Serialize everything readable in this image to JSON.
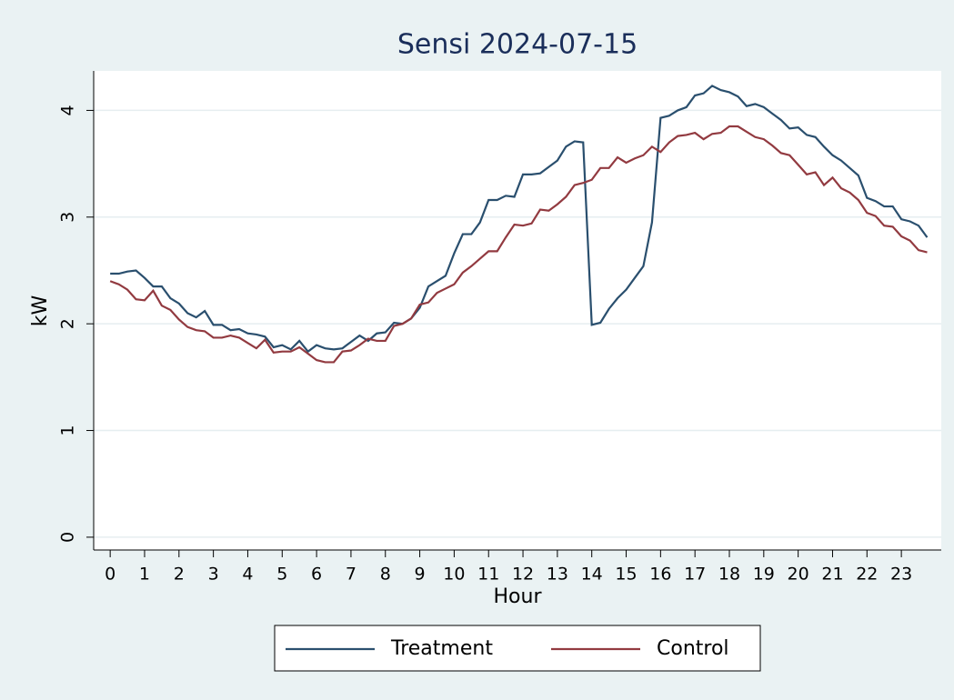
{
  "chart_data": {
    "type": "line",
    "title": "Sensi 2024-07-15",
    "x_label": "Hour",
    "y_label": "kW",
    "x": [
      0,
      0.25,
      0.5,
      0.75,
      1,
      1.25,
      1.5,
      1.75,
      2,
      2.25,
      2.5,
      2.75,
      3,
      3.25,
      3.5,
      3.75,
      4,
      4.25,
      4.5,
      4.75,
      5,
      5.25,
      5.5,
      5.75,
      6,
      6.25,
      6.5,
      6.75,
      7,
      7.25,
      7.5,
      7.75,
      8,
      8.25,
      8.5,
      8.75,
      9,
      9.25,
      9.5,
      9.75,
      10,
      10.25,
      10.5,
      10.75,
      11,
      11.25,
      11.5,
      11.75,
      12,
      12.25,
      12.5,
      12.75,
      13,
      13.25,
      13.5,
      13.75,
      14,
      14.25,
      14.5,
      14.75,
      15,
      15.25,
      15.5,
      15.75,
      16,
      16.25,
      16.5,
      16.75,
      17,
      17.25,
      17.5,
      17.75,
      18,
      18.25,
      18.5,
      18.75,
      19,
      19.25,
      19.5,
      19.75,
      20,
      20.25,
      20.5,
      20.75,
      21,
      21.25,
      21.5,
      21.75,
      22,
      22.25,
      22.5,
      22.75,
      23,
      23.25,
      23.5,
      23.75
    ],
    "series": [
      {
        "name": "Treatment",
        "color": "#2a4f6e",
        "values": [
          2.47,
          2.47,
          2.49,
          2.5,
          2.43,
          2.35,
          2.35,
          2.24,
          2.19,
          2.1,
          2.06,
          2.12,
          1.99,
          1.99,
          1.94,
          1.95,
          1.91,
          1.9,
          1.88,
          1.78,
          1.8,
          1.76,
          1.84,
          1.74,
          1.8,
          1.77,
          1.76,
          1.77,
          1.83,
          1.89,
          1.84,
          1.91,
          1.92,
          2.01,
          2.0,
          2.05,
          2.15,
          2.35,
          2.4,
          2.45,
          2.66,
          2.84,
          2.84,
          2.95,
          3.16,
          3.16,
          3.2,
          3.19,
          3.4,
          3.4,
          3.41,
          3.47,
          3.53,
          3.66,
          3.71,
          3.7,
          1.99,
          2.01,
          2.14,
          2.24,
          2.32,
          2.43,
          2.54,
          2.95,
          3.93,
          3.95,
          4.0,
          4.03,
          4.14,
          4.16,
          4.23,
          4.19,
          4.17,
          4.13,
          4.04,
          4.06,
          4.03,
          3.97,
          3.91,
          3.83,
          3.84,
          3.77,
          3.75,
          3.66,
          3.58,
          3.53,
          3.46,
          3.39,
          3.18,
          3.15,
          3.1,
          3.1,
          2.98,
          2.96,
          2.92,
          2.81
        ]
      },
      {
        "name": "Control",
        "color": "#923a40",
        "values": [
          2.4,
          2.37,
          2.32,
          2.23,
          2.22,
          2.31,
          2.17,
          2.13,
          2.04,
          1.97,
          1.94,
          1.93,
          1.87,
          1.87,
          1.89,
          1.87,
          1.82,
          1.77,
          1.85,
          1.73,
          1.74,
          1.74,
          1.78,
          1.72,
          1.66,
          1.64,
          1.64,
          1.74,
          1.75,
          1.8,
          1.86,
          1.84,
          1.84,
          1.98,
          2.0,
          2.05,
          2.18,
          2.2,
          2.29,
          2.33,
          2.37,
          2.48,
          2.54,
          2.61,
          2.68,
          2.68,
          2.81,
          2.93,
          2.92,
          2.94,
          3.07,
          3.06,
          3.12,
          3.19,
          3.3,
          3.32,
          3.35,
          3.46,
          3.46,
          3.56,
          3.51,
          3.55,
          3.58,
          3.66,
          3.61,
          3.7,
          3.76,
          3.77,
          3.79,
          3.73,
          3.78,
          3.79,
          3.85,
          3.85,
          3.8,
          3.75,
          3.73,
          3.67,
          3.6,
          3.58,
          3.49,
          3.4,
          3.42,
          3.3,
          3.37,
          3.27,
          3.23,
          3.16,
          3.04,
          3.01,
          2.92,
          2.91,
          2.82,
          2.78,
          2.69,
          2.67
        ]
      }
    ],
    "xlim": [
      -0.48,
      24.16
    ],
    "ylim": [
      -0.12,
      4.37
    ],
    "xticks": [
      0,
      1,
      2,
      3,
      4,
      5,
      6,
      7,
      8,
      9,
      10,
      11,
      12,
      13,
      14,
      15,
      16,
      17,
      18,
      19,
      20,
      21,
      22,
      23
    ],
    "yticks": [
      0,
      1,
      2,
      3,
      4
    ],
    "grid": true
  }
}
